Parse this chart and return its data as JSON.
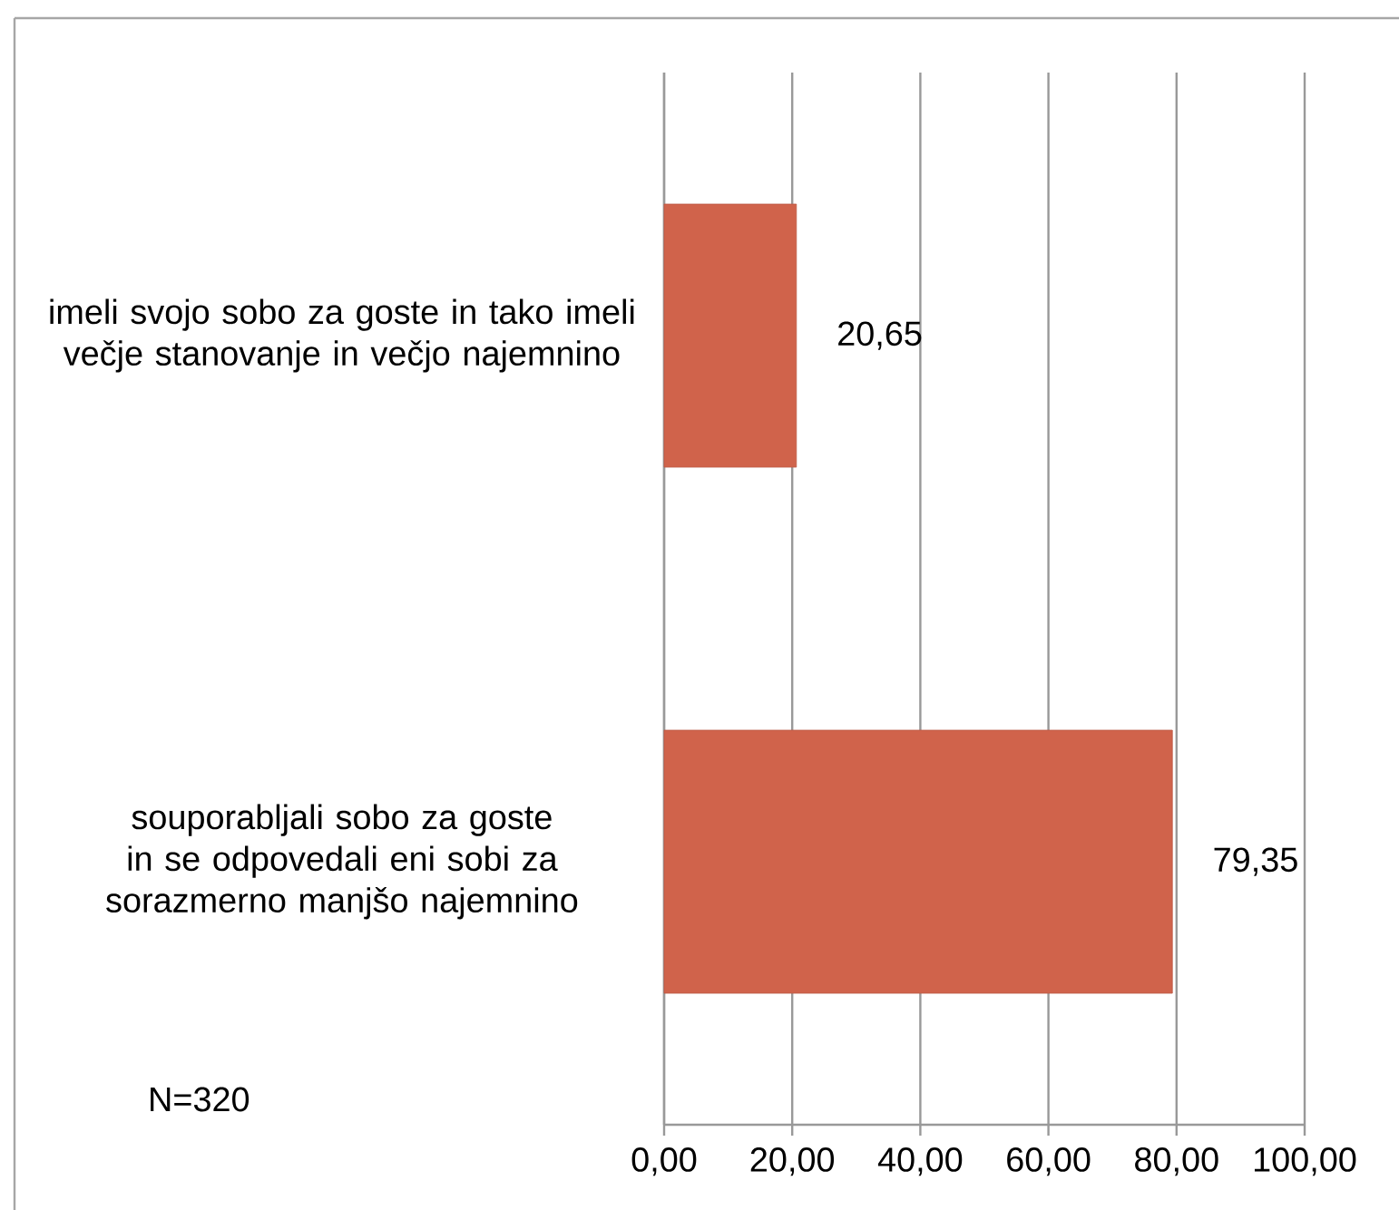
{
  "chart_data": {
    "type": "bar",
    "orientation": "horizontal",
    "categories": [
      "imeli svojo sobo za goste in tako imeli večje stanovanje in večjo najemnino",
      "souporabljali sobo za goste in se odpovedali eni sobi za sorazmerno manjšo najemnino"
    ],
    "values": [
      20.65,
      79.35
    ],
    "value_labels": [
      "20,65",
      "79,35"
    ],
    "color": "#d0634b",
    "xlim": [
      0,
      100
    ],
    "xticks": [
      {
        "value": 0,
        "label": "0,00"
      },
      {
        "value": 20,
        "label": "20,00"
      },
      {
        "value": 40,
        "label": "40,00"
      },
      {
        "value": 60,
        "label": "60,00"
      },
      {
        "value": 80,
        "label": "80,00"
      },
      {
        "value": 100,
        "label": "100,00"
      }
    ],
    "grid": "x",
    "annotations": [
      "N=320"
    ]
  }
}
